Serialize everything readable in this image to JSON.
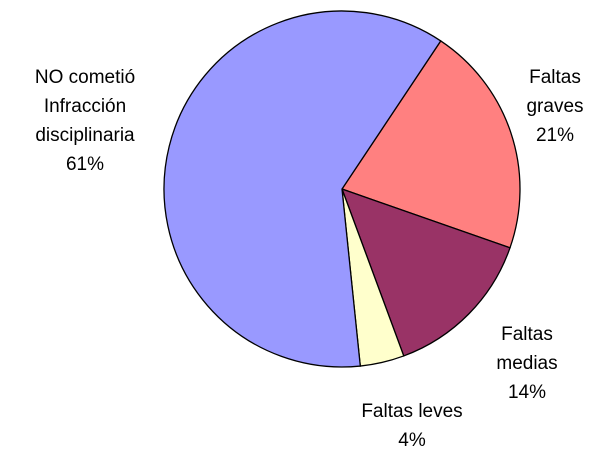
{
  "chart_data": {
    "type": "pie",
    "categories": [
      "Faltas graves",
      "Faltas medias",
      "Faltas leves",
      "NO cometió Infracción disciplinaria"
    ],
    "values": [
      21,
      14,
      4,
      61
    ],
    "value_labels": [
      "21%",
      "14%",
      "4%",
      "61%"
    ],
    "colors": [
      "#ff8080",
      "#993366",
      "#ffffcc",
      "#9999ff"
    ]
  }
}
